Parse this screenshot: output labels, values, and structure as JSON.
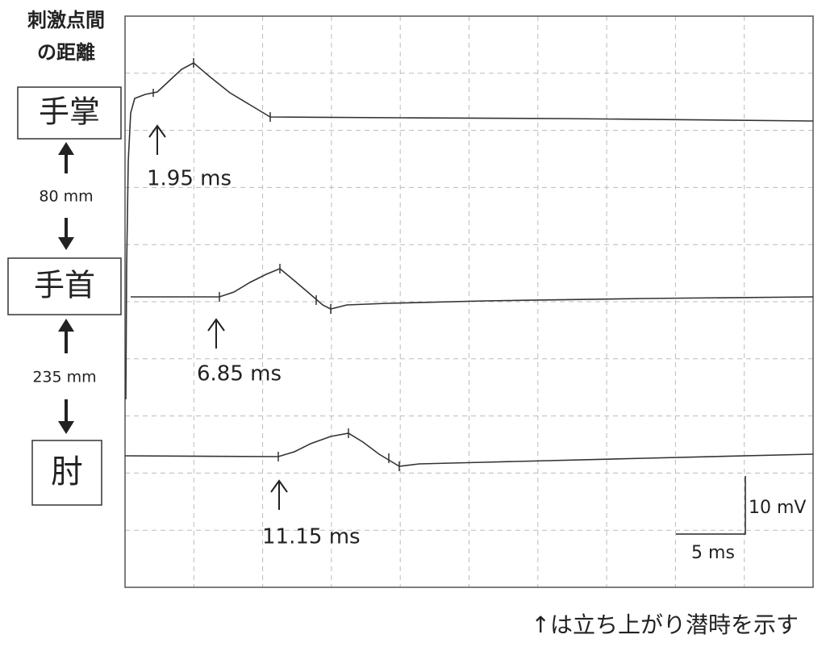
{
  "header": {
    "title_lines": [
      "刺激点間",
      "の距離"
    ]
  },
  "sites": [
    {
      "label": "手掌"
    },
    {
      "label": "手首"
    },
    {
      "label": "肘"
    }
  ],
  "distances": [
    "80 mm",
    "235 mm"
  ],
  "latencies": [
    "1.95 ms",
    "6.85 ms",
    "11.15 ms"
  ],
  "scale": {
    "amplitude": "10 mV",
    "time": "5 ms"
  },
  "footnote": "↑は立ち上がり潜時を示す"
}
